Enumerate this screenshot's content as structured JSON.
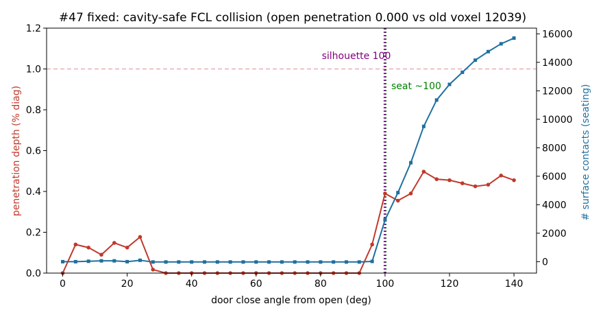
{
  "chart_data": {
    "type": "line",
    "title": "#47 fixed: cavity-safe FCL collision (open penetration 0.000 vs old voxel 12039)",
    "xlabel": "door close angle from open (deg)",
    "ylabel_left": "penetration depth (% diag)",
    "ylabel_right": "# surface contacts (seating)",
    "xlim": [
      -5,
      147
    ],
    "ylim_left": [
      0,
      1.2
    ],
    "ylim_right": [
      -800,
      16400
    ],
    "x_ticks": [
      0,
      20,
      40,
      60,
      80,
      100,
      120,
      140
    ],
    "y_left_ticks": [
      "0.0",
      "0.2",
      "0.4",
      "0.6",
      "0.8",
      "1.0",
      "1.2"
    ],
    "y_right_ticks": [
      0,
      2000,
      4000,
      6000,
      8000,
      10000,
      12000,
      14000,
      16000
    ],
    "grid": false,
    "series": [
      {
        "axis": "left",
        "color": "#c0392b",
        "marker": "circle",
        "x": [
          0,
          4,
          8,
          12,
          16,
          20,
          24,
          28,
          32,
          36,
          40,
          44,
          48,
          52,
          56,
          60,
          64,
          68,
          72,
          76,
          80,
          84,
          88,
          92,
          96,
          100,
          104,
          108,
          112,
          116,
          120,
          124,
          128,
          132,
          136,
          140
        ],
        "values": [
          0.0,
          0.14,
          0.125,
          0.09,
          0.148,
          0.125,
          0.177,
          0.017,
          0.0,
          0.0,
          0.0,
          0.0,
          0.0,
          0.0,
          0.0,
          0.0,
          0.0,
          0.0,
          0.0,
          0.0,
          0.0,
          0.0,
          0.0,
          0.0,
          0.14,
          0.39,
          0.355,
          0.39,
          0.497,
          0.46,
          0.455,
          0.44,
          0.425,
          0.433,
          0.478,
          0.455
        ]
      },
      {
        "axis": "right",
        "color": "#1f6f9f",
        "marker": "square",
        "x": [
          0,
          4,
          8,
          12,
          16,
          20,
          24,
          28,
          32,
          36,
          40,
          44,
          48,
          52,
          56,
          60,
          64,
          68,
          72,
          76,
          80,
          84,
          88,
          92,
          96,
          100,
          104,
          108,
          112,
          116,
          120,
          124,
          128,
          132,
          136,
          140
        ],
        "values": [
          0,
          0,
          30,
          60,
          60,
          0,
          100,
          -20,
          -20,
          -20,
          -20,
          -20,
          -20,
          -20,
          -20,
          -20,
          -20,
          -20,
          -20,
          -20,
          -20,
          -20,
          -20,
          -20,
          20,
          2930,
          4850,
          6950,
          9500,
          11350,
          12450,
          13300,
          14150,
          14750,
          15300,
          15700
        ]
      }
    ],
    "hlines": [
      {
        "axis": "left",
        "y": 1.0,
        "color": "#e2a0a6",
        "style": "dashed"
      }
    ],
    "vlines": [
      {
        "x": 100,
        "color": "#7b1a8c",
        "style": "dotted"
      },
      {
        "x": 100,
        "color": "#1a5c1a",
        "style": "dotted"
      }
    ],
    "annotations": [
      {
        "text": "silhouette 100",
        "color": "#800080"
      },
      {
        "text": "seat ~100",
        "color": "#008000"
      }
    ]
  }
}
